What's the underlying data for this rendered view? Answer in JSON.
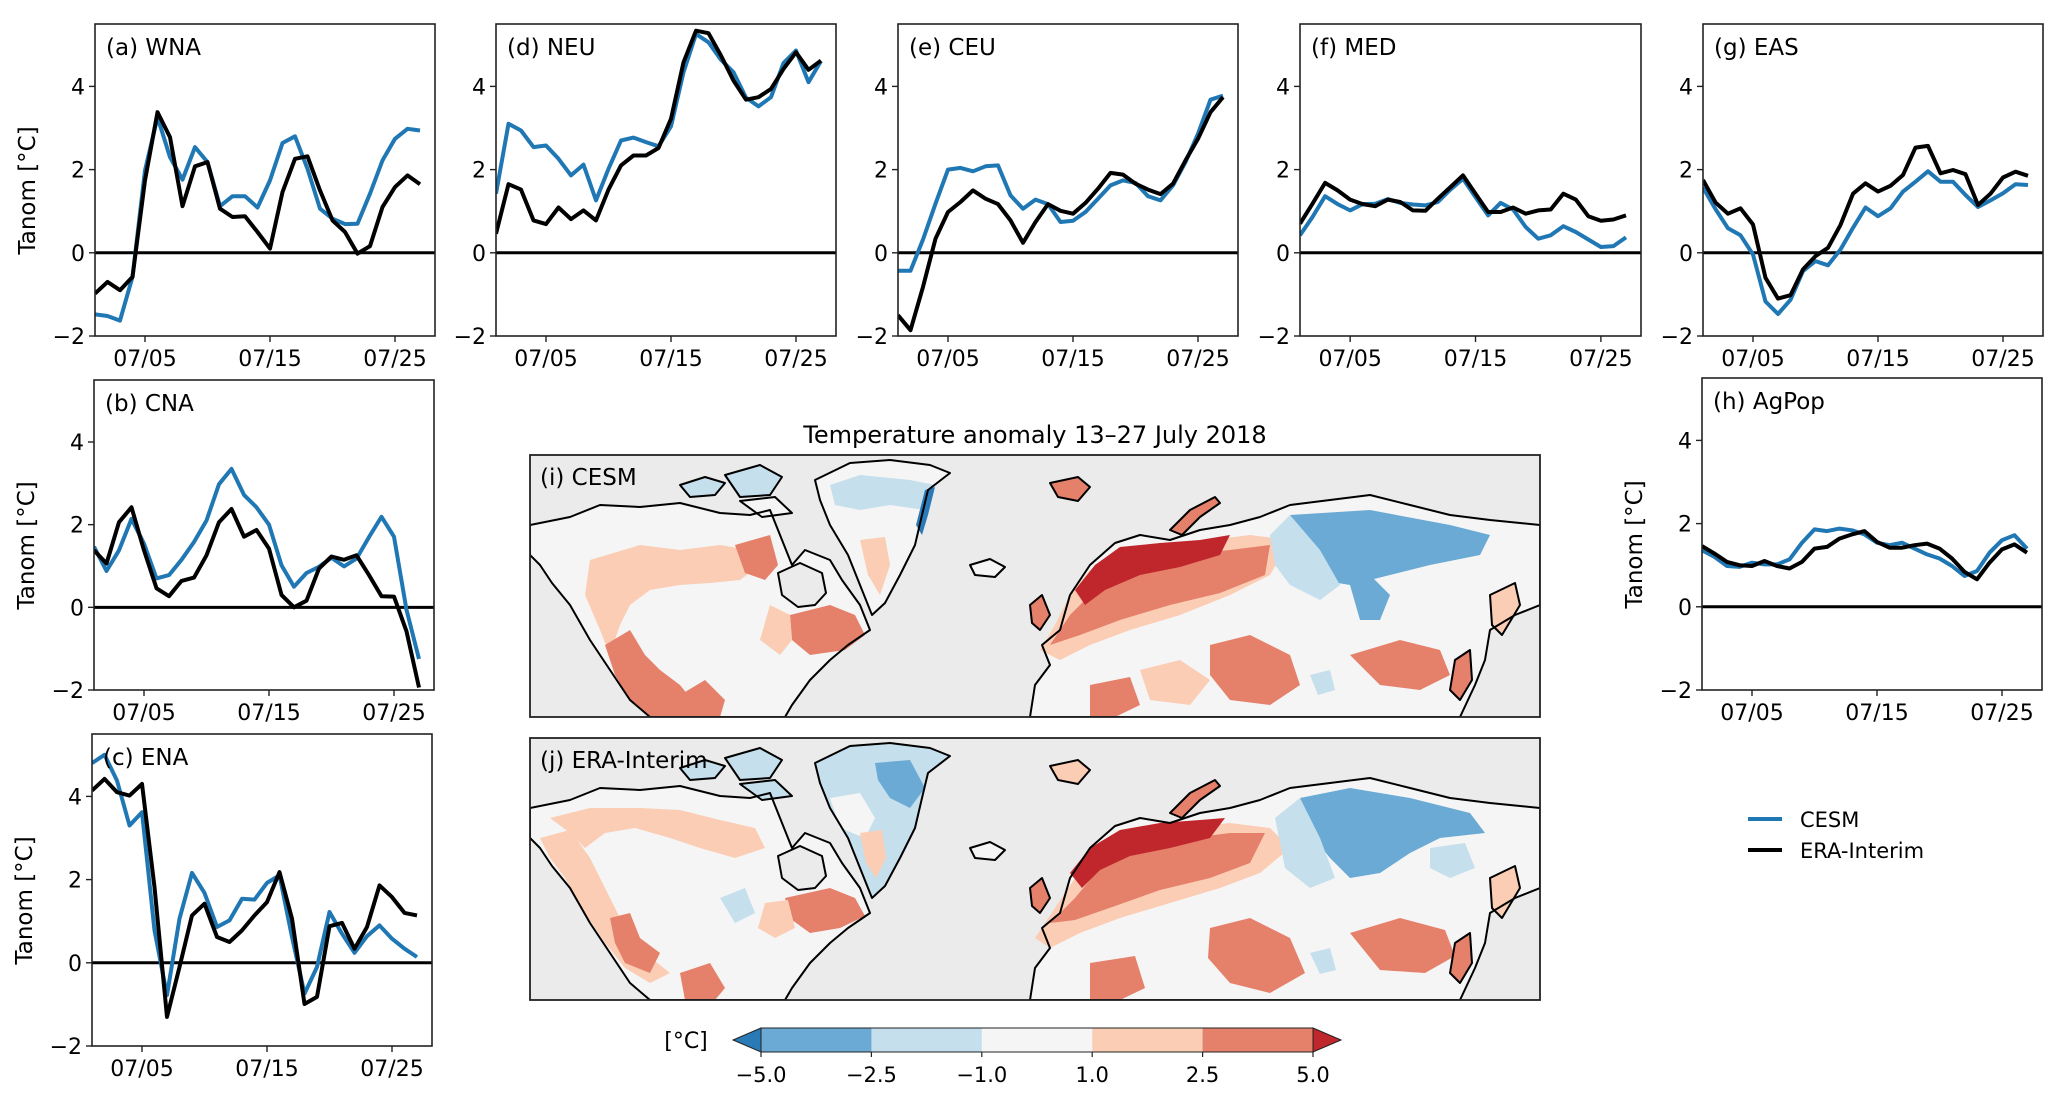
{
  "chart_data": {
    "type": "line",
    "figure_title": "Temperature anomaly 13–27 July 2018",
    "x_days": [
      1,
      2,
      3,
      4,
      5,
      6,
      7,
      8,
      9,
      10,
      11,
      12,
      13,
      14,
      15,
      16,
      17,
      18,
      19,
      20,
      21,
      22,
      23,
      24,
      25,
      26,
      27
    ],
    "x_date_format": "07/DD (July 2018)",
    "xticks": [
      {
        "day": 5,
        "label": "07/05"
      },
      {
        "day": 15,
        "label": "07/15"
      },
      {
        "day": 25,
        "label": "07/25"
      }
    ],
    "xlim": [
      1,
      28.2
    ],
    "ylim": [
      -2,
      5.5
    ],
    "yticks": [
      {
        "value": -2,
        "label": "−2"
      },
      {
        "value": 0,
        "label": "0"
      },
      {
        "value": 2,
        "label": "2"
      },
      {
        "value": 4,
        "label": "4"
      }
    ],
    "ylabel": "Tanom [°C]",
    "zero_line": true,
    "legend": {
      "placement": "right-middle",
      "entries": [
        {
          "name": "CESM",
          "color": "#1f77b4"
        },
        {
          "name": "ERA-Interim",
          "color": "#000000"
        }
      ]
    },
    "panels": [
      {
        "id": "a",
        "title": "(a) WNA",
        "show_ylabel": true,
        "series": [
          {
            "name": "CESM",
            "color": "#1f77b4",
            "values": [
              -1.48,
              -1.52,
              -1.63,
              -0.58,
              1.98,
              3.26,
              2.3,
              1.76,
              2.54,
              2.18,
              1.12,
              1.36,
              1.36,
              1.09,
              1.74,
              2.64,
              2.8,
              2.02,
              1.06,
              0.82,
              0.69,
              0.7,
              1.42,
              2.22,
              2.74,
              2.98,
              2.94
            ]
          },
          {
            "name": "ERA-Interim",
            "color": "#000000",
            "values": [
              -0.98,
              -0.7,
              -0.9,
              -0.58,
              1.74,
              3.38,
              2.78,
              1.12,
              2.08,
              2.18,
              1.06,
              0.86,
              0.88,
              0.5,
              0.1,
              1.46,
              2.26,
              2.32,
              1.5,
              0.78,
              0.5,
              -0.02,
              0.16,
              1.1,
              1.58,
              1.86,
              1.65
            ]
          }
        ]
      },
      {
        "id": "d",
        "title": "(d) NEU",
        "show_ylabel": false,
        "series": [
          {
            "name": "CESM",
            "color": "#1f77b4",
            "values": [
              1.42,
              3.1,
              2.94,
              2.54,
              2.58,
              2.26,
              1.86,
              2.12,
              1.26,
              2.02,
              2.7,
              2.77,
              2.66,
              2.56,
              3.04,
              4.34,
              5.26,
              5.06,
              4.64,
              4.34,
              3.73,
              3.52,
              3.74,
              4.56,
              4.86,
              4.1,
              4.61
            ]
          },
          {
            "name": "ERA-Interim",
            "color": "#000000",
            "values": [
              0.46,
              1.65,
              1.52,
              0.78,
              0.69,
              1.09,
              0.81,
              1.02,
              0.78,
              1.52,
              2.1,
              2.34,
              2.34,
              2.52,
              3.22,
              4.58,
              5.34,
              5.28,
              4.74,
              4.14,
              3.68,
              3.74,
              3.94,
              4.42,
              4.82,
              4.4,
              4.62
            ]
          }
        ]
      },
      {
        "id": "e",
        "title": "(e) CEU",
        "show_ylabel": false,
        "series": [
          {
            "name": "CESM",
            "color": "#1f77b4",
            "values": [
              -0.43,
              -0.43,
              0.32,
              1.18,
              2.0,
              2.04,
              1.96,
              2.08,
              2.1,
              1.38,
              1.06,
              1.28,
              1.17,
              0.74,
              0.77,
              0.98,
              1.3,
              1.62,
              1.74,
              1.68,
              1.36,
              1.26,
              1.62,
              2.18,
              2.86,
              3.68,
              3.78
            ]
          },
          {
            "name": "ERA-Interim",
            "color": "#000000",
            "values": [
              -1.5,
              -1.86,
              -0.82,
              0.34,
              0.98,
              1.22,
              1.5,
              1.3,
              1.17,
              0.78,
              0.24,
              0.74,
              1.17,
              1.01,
              0.94,
              1.2,
              1.54,
              1.92,
              1.88,
              1.66,
              1.52,
              1.41,
              1.66,
              2.22,
              2.74,
              3.38,
              3.74
            ]
          }
        ]
      },
      {
        "id": "f",
        "title": "(f) MED",
        "show_ylabel": false,
        "series": [
          {
            "name": "CESM",
            "color": "#1f77b4",
            "values": [
              0.42,
              0.86,
              1.36,
              1.17,
              1.02,
              1.17,
              1.18,
              1.29,
              1.2,
              1.16,
              1.14,
              1.22,
              1.52,
              1.78,
              1.34,
              0.9,
              1.2,
              1.04,
              0.62,
              0.34,
              0.42,
              0.64,
              0.5,
              0.32,
              0.14,
              0.16,
              0.37
            ]
          },
          {
            "name": "ERA-Interim",
            "color": "#000000",
            "values": [
              0.7,
              1.18,
              1.68,
              1.5,
              1.28,
              1.17,
              1.12,
              1.28,
              1.22,
              1.02,
              1.01,
              1.3,
              1.58,
              1.86,
              1.42,
              0.98,
              0.98,
              1.09,
              0.94,
              1.02,
              1.04,
              1.42,
              1.28,
              0.88,
              0.77,
              0.8,
              0.9
            ]
          }
        ]
      },
      {
        "id": "g",
        "title": "(g) EAS",
        "show_ylabel": false,
        "series": [
          {
            "name": "CESM",
            "color": "#1f77b4",
            "values": [
              1.57,
              1.05,
              0.59,
              0.42,
              -0.04,
              -1.17,
              -1.47,
              -1.13,
              -0.44,
              -0.2,
              -0.3,
              0.08,
              0.6,
              1.09,
              0.88,
              1.07,
              1.47,
              1.71,
              1.96,
              1.71,
              1.71,
              1.39,
              1.1,
              1.26,
              1.43,
              1.65,
              1.63
            ]
          },
          {
            "name": "ERA-Interim",
            "color": "#000000",
            "values": [
              1.75,
              1.21,
              0.94,
              1.07,
              0.68,
              -0.6,
              -1.1,
              -1.02,
              -0.4,
              -0.08,
              0.12,
              0.67,
              1.42,
              1.67,
              1.47,
              1.61,
              1.87,
              2.53,
              2.57,
              1.91,
              1.99,
              1.89,
              1.15,
              1.42,
              1.81,
              1.95,
              1.85
            ]
          }
        ]
      },
      {
        "id": "b",
        "title": "(b) CNA",
        "show_ylabel": true,
        "series": [
          {
            "name": "CESM",
            "color": "#1f77b4",
            "values": [
              1.47,
              0.88,
              1.38,
              2.14,
              1.54,
              0.7,
              0.78,
              1.15,
              1.58,
              2.1,
              2.98,
              3.35,
              2.72,
              2.42,
              2.0,
              1.02,
              0.5,
              0.83,
              0.98,
              1.2,
              0.99,
              1.18,
              1.7,
              2.19,
              1.71,
              -0.06,
              -1.25
            ]
          },
          {
            "name": "ERA-Interim",
            "color": "#000000",
            "values": [
              1.38,
              1.06,
              2.06,
              2.42,
              1.38,
              0.46,
              0.27,
              0.64,
              0.72,
              1.26,
              2.06,
              2.38,
              1.71,
              1.87,
              1.42,
              0.3,
              0.0,
              0.16,
              0.94,
              1.23,
              1.15,
              1.26,
              0.78,
              0.27,
              0.26,
              -0.58,
              -1.94
            ]
          }
        ]
      },
      {
        "id": "c",
        "title": "(c) ENA",
        "show_ylabel": true,
        "series": [
          {
            "name": "CESM",
            "color": "#1f77b4",
            "values": [
              4.8,
              5.0,
              4.38,
              3.3,
              3.62,
              0.78,
              -0.78,
              1.06,
              2.16,
              1.68,
              0.86,
              1.02,
              1.54,
              1.52,
              1.92,
              2.1,
              0.62,
              -0.74,
              -0.1,
              1.22,
              0.7,
              0.24,
              0.64,
              0.9,
              0.58,
              0.34,
              0.14
            ]
          },
          {
            "name": "ERA-Interim",
            "color": "#000000",
            "values": [
              4.14,
              4.42,
              4.1,
              4.02,
              4.3,
              1.82,
              -1.3,
              -0.1,
              1.14,
              1.42,
              0.62,
              0.5,
              0.78,
              1.14,
              1.46,
              2.18,
              1.06,
              -0.99,
              -0.82,
              0.88,
              0.96,
              0.34,
              0.86,
              1.86,
              1.58,
              1.2,
              1.14
            ]
          }
        ]
      },
      {
        "id": "h",
        "title": "(h) AgPop",
        "show_ylabel": true,
        "series": [
          {
            "name": "CESM",
            "color": "#1f77b4",
            "values": [
              1.36,
              1.2,
              0.98,
              0.96,
              1.06,
              1.02,
              1.02,
              1.14,
              1.54,
              1.86,
              1.82,
              1.88,
              1.84,
              1.74,
              1.54,
              1.48,
              1.54,
              1.4,
              1.26,
              1.16,
              0.98,
              0.74,
              0.86,
              1.3,
              1.6,
              1.72,
              1.4
            ]
          },
          {
            "name": "ERA-Interim",
            "color": "#000000",
            "values": [
              1.46,
              1.28,
              1.08,
              1.0,
              0.98,
              1.1,
              0.98,
              0.92,
              1.08,
              1.4,
              1.44,
              1.64,
              1.74,
              1.82,
              1.56,
              1.42,
              1.42,
              1.48,
              1.52,
              1.4,
              1.16,
              0.84,
              0.66,
              1.06,
              1.38,
              1.5,
              1.3
            ]
          }
        ]
      }
    ],
    "maps": {
      "type": "heatmap",
      "title": "Temperature anomaly 13–27 July 2018",
      "panels": [
        {
          "id": "i",
          "title": "(i) CESM",
          "regional_anomaly_bins": {
            "greenland_coast": "-2.5 to -1.0",
            "greenland_east_edge": "-5.0 to -2.5",
            "greenland_south": "1.0 to 2.5",
            "canadian_archipelago": "-2.5 to -1.0",
            "alaska": "-1.0 to 1.0",
            "western_us": "2.5 to 5.0",
            "eastern_canada": "2.5 to 5.0",
            "scandinavia": "> 5.0",
            "western_russia": "2.5 to 5.0",
            "eastern_siberia": "-5.0 to -2.5",
            "central_asia": "2.5 to 5.0",
            "far_east": "2.5 to 5.0"
          }
        },
        {
          "id": "j",
          "title": "(j) ERA-Interim",
          "regional_anomaly_bins": {
            "greenland_coast": "-2.5 to -1.0",
            "greenland_center": "-5.0 to -2.5",
            "greenland_south": "1.0 to 2.5",
            "canadian_archipelago": "-2.5 to -1.0",
            "alaska": "1.0 to 2.5",
            "western_us": "2.5 to 5.0",
            "eastern_canada": "2.5 to 5.0",
            "scandinavia": "> 5.0",
            "western_russia": "2.5 to 5.0",
            "eastern_siberia": "-5.0 to -2.5",
            "central_asia": "2.5 to 5.0",
            "far_east": "2.5 to 5.0"
          }
        }
      ],
      "colorbar": {
        "label": "[°C]",
        "boundaries": [
          -5.0,
          -2.5,
          -1.0,
          1.0,
          2.5,
          5.0
        ],
        "tick_labels": [
          "−5.0",
          "−2.5",
          "−1.0",
          "1.0",
          "2.5",
          "5.0"
        ],
        "colors": [
          "#6aaad4",
          "#c5dfec",
          "#f5f5f5",
          "#fbcdb4",
          "#e5806a"
        ],
        "under_color": "#2a7ab8",
        "over_color": "#c0272d",
        "extend": "both"
      },
      "ocean_color": "#ebebeb"
    }
  }
}
